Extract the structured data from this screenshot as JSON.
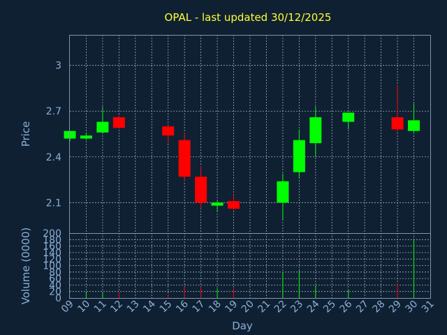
{
  "title": "OPAL - last updated 30/12/2025",
  "colors": {
    "background": "#0f2033",
    "up": "#00ff00",
    "down": "#ff0000",
    "title": "#ffff33",
    "axis_text": "#8cb0d6"
  },
  "chart_data": [
    {
      "type": "candlestick",
      "ylabel": "Price",
      "ylim": [
        1.9,
        3.2
      ],
      "yticks": [
        "2.1",
        "2.4",
        "2.7",
        "3"
      ],
      "grid": true,
      "x": [
        "09",
        "10",
        "11",
        "12",
        "15",
        "16",
        "17",
        "18",
        "19",
        "22",
        "23",
        "24",
        "26",
        "29",
        "30"
      ],
      "open": [
        2.52,
        2.52,
        2.56,
        2.66,
        2.6,
        2.51,
        2.27,
        2.08,
        2.11,
        2.1,
        2.3,
        2.49,
        2.63,
        2.66,
        2.57
      ],
      "high": [
        2.57,
        2.56,
        2.73,
        2.67,
        2.61,
        2.56,
        2.34,
        2.11,
        2.15,
        2.29,
        2.58,
        2.73,
        2.69,
        2.87,
        2.75
      ],
      "low": [
        2.5,
        2.51,
        2.55,
        2.59,
        2.49,
        2.24,
        2.06,
        2.04,
        2.05,
        1.99,
        2.26,
        2.4,
        2.58,
        2.56,
        2.56
      ],
      "close": [
        2.57,
        2.54,
        2.63,
        2.59,
        2.54,
        2.27,
        2.1,
        2.1,
        2.06,
        2.24,
        2.51,
        2.66,
        2.69,
        2.58,
        2.64
      ]
    },
    {
      "type": "bar",
      "ylabel": "Volume (0000)",
      "xlabel": "Day",
      "ylim": [
        0,
        200
      ],
      "yticks": [
        "0",
        "20",
        "40",
        "60",
        "80",
        "100",
        "120",
        "140",
        "160",
        "180",
        "200"
      ],
      "grid": true,
      "x_ticks": [
        "09",
        "10",
        "11",
        "12",
        "13",
        "14",
        "15",
        "16",
        "17",
        "18",
        "19",
        "20",
        "21",
        "22",
        "23",
        "24",
        "25",
        "26",
        "27",
        "28",
        "29",
        "30",
        "31"
      ],
      "x": [
        "09",
        "10",
        "11",
        "12",
        "15",
        "16",
        "17",
        "18",
        "19",
        "22",
        "23",
        "24",
        "26",
        "29",
        "30"
      ],
      "values": [
        1,
        20,
        15,
        20,
        10,
        35,
        35,
        30,
        30,
        80,
        85,
        38,
        25,
        45,
        180
      ],
      "direction": [
        "up",
        "up",
        "up",
        "down",
        "down",
        "down",
        "down",
        "up",
        "down",
        "up",
        "up",
        "up",
        "up",
        "down",
        "up"
      ]
    }
  ]
}
